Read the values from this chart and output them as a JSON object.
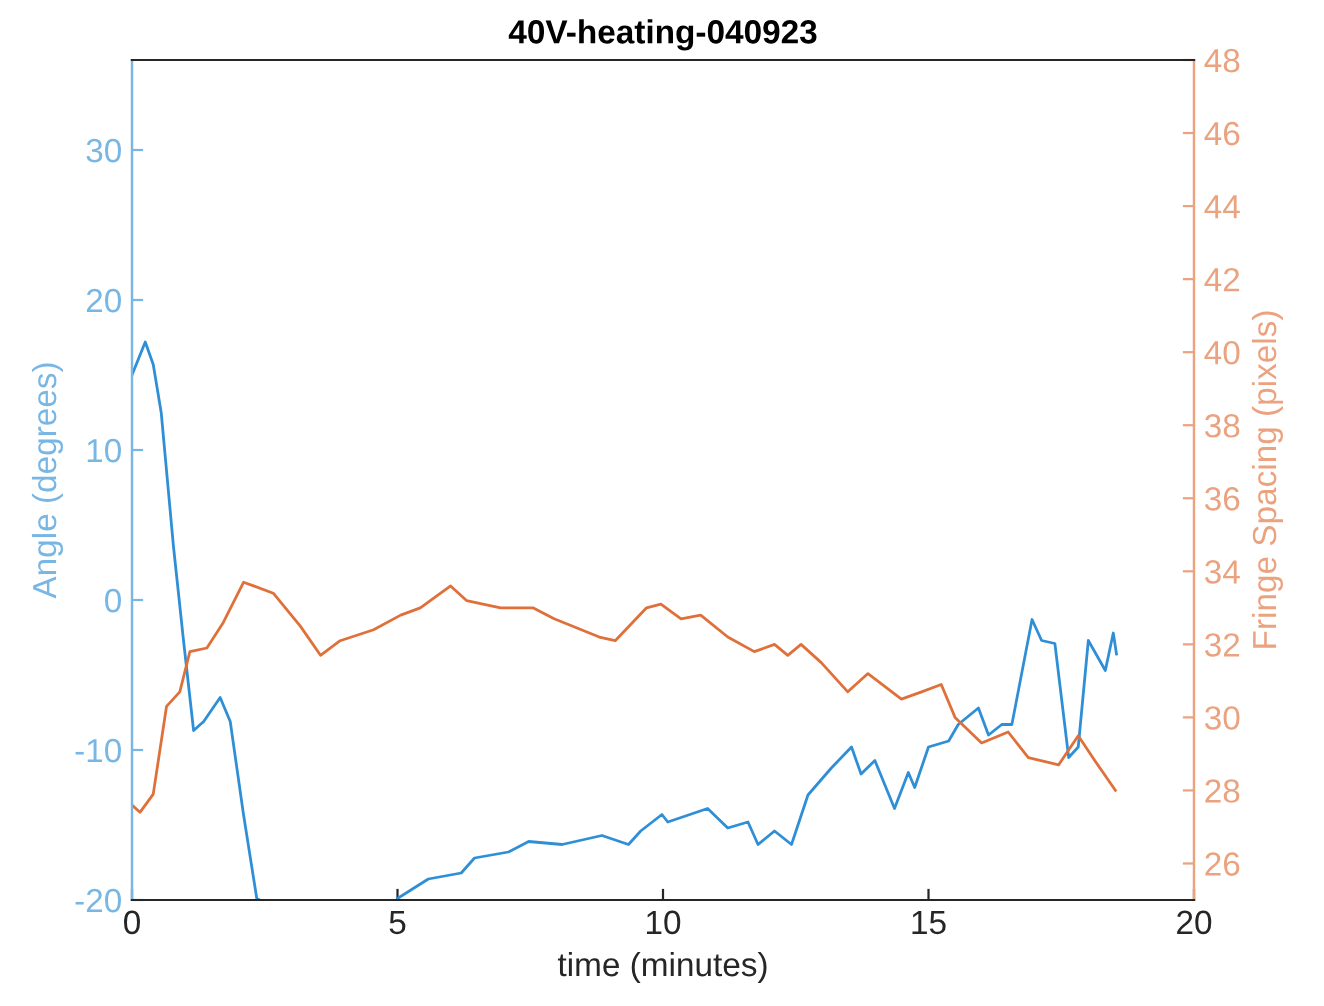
{
  "chart_data": {
    "type": "line",
    "title": "40V-heating-040923",
    "xlabel": "time (minutes)",
    "ylabel": "Angle (degrees)",
    "y2label": "Fringe Spacing (pixels)",
    "xlim": [
      0,
      20
    ],
    "xticks": [
      0,
      5,
      10,
      15,
      20
    ],
    "ylim": [
      -20,
      36
    ],
    "yticks": [
      -20,
      -10,
      0,
      10,
      20,
      30
    ],
    "y2lim": [
      25,
      48
    ],
    "y2ticks": [
      26,
      28,
      30,
      32,
      34,
      36,
      38,
      40,
      42,
      44,
      46,
      48
    ],
    "grid": false,
    "legend": false,
    "marker": "none",
    "line_style": "solid",
    "series": [
      {
        "color": "#2f8fd6",
        "x": [
          0,
          0.25,
          0.4,
          0.55,
          0.78,
          0.97,
          1.16,
          1.35,
          1.66,
          1.85,
          2.1,
          2.35,
          2.4,
          3.7,
          5.0,
          5.58,
          6.2,
          6.45,
          7.09,
          7.47,
          8.1,
          8.85,
          9.35,
          9.58,
          9.98,
          10.09,
          10.84,
          11.22,
          11.6,
          11.79,
          12.1,
          12.42,
          12.73,
          13.17,
          13.55,
          13.73,
          13.99,
          14.36,
          14.62,
          14.74,
          15.0,
          15.38,
          15.56,
          15.94,
          16.13,
          16.38,
          16.57,
          16.95,
          17.13,
          17.38,
          17.64,
          17.82,
          18.01,
          18.33,
          18.48,
          18.54
        ],
        "values": [
          15.0,
          17.2,
          15.7,
          12.5,
          3.6,
          -2.7,
          -8.7,
          -8.1,
          -6.5,
          -8.1,
          -14.3,
          -19.9,
          -20,
          null,
          -19.9,
          -18.6,
          -18.2,
          -17.2,
          -16.8,
          -16.1,
          -16.3,
          -15.7,
          -16.3,
          -15.4,
          -14.3,
          -14.8,
          -13.9,
          -15.2,
          -14.8,
          -16.3,
          -15.4,
          -16.3,
          -13.0,
          -11.2,
          -9.8,
          -11.6,
          -10.7,
          -13.9,
          -11.5,
          -12.5,
          -9.8,
          -9.4,
          -8.3,
          -7.2,
          -9.0,
          -8.3,
          -8.3,
          -1.3,
          -2.7,
          -2.9,
          -10.5,
          -9.8,
          -2.7,
          -4.7,
          -2.2,
          -3.6
        ]
      },
      {
        "color": "#e0703a",
        "axis": "y2",
        "x": [
          0,
          0.15,
          0.4,
          0.65,
          0.9,
          1.09,
          1.41,
          1.72,
          2.1,
          2.29,
          2.66,
          3.17,
          3.55,
          3.92,
          4.55,
          5.06,
          5.43,
          6.0,
          6.3,
          6.94,
          7.55,
          7.95,
          8.8,
          9.1,
          9.69,
          9.96,
          10.34,
          10.71,
          11.22,
          11.72,
          12.1,
          12.35,
          12.6,
          12.98,
          13.48,
          13.86,
          14.49,
          14.87,
          15.24,
          15.5,
          16.0,
          16.5,
          16.88,
          17.45,
          17.82,
          18.14,
          18.52
        ],
        "values": [
          27.6,
          27.4,
          27.9,
          30.3,
          30.7,
          31.8,
          31.9,
          32.6,
          33.7,
          33.6,
          33.4,
          32.5,
          31.7,
          32.1,
          32.4,
          32.8,
          33.0,
          33.6,
          33.2,
          33.0,
          33.0,
          32.7,
          32.2,
          32.1,
          33.0,
          33.1,
          32.7,
          32.8,
          32.2,
          31.8,
          32.0,
          31.7,
          32.0,
          31.5,
          30.7,
          31.2,
          30.5,
          30.7,
          30.9,
          30.0,
          29.3,
          29.6,
          28.9,
          28.7,
          29.5,
          28.8,
          28.0
        ]
      }
    ]
  }
}
